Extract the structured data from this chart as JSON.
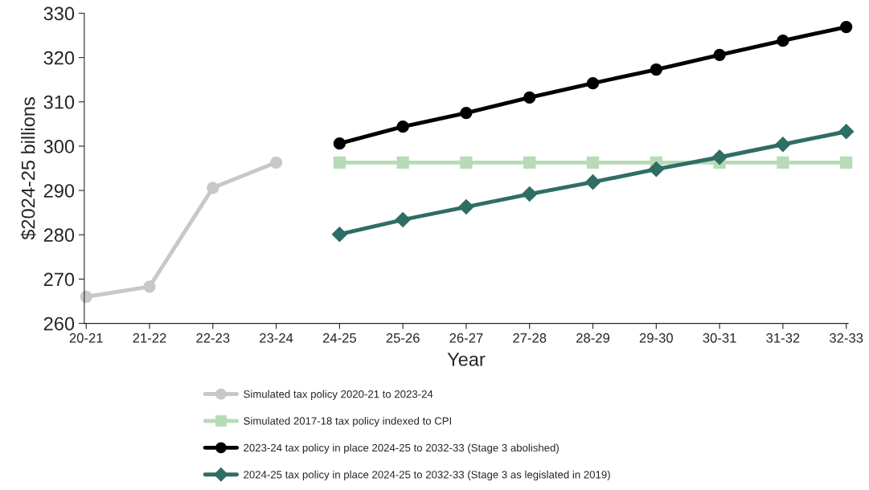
{
  "chart_data": {
    "type": "line",
    "xlabel": "Year",
    "ylabel": "$2024-25 billions",
    "categories": [
      "20-21",
      "21-22",
      "22-23",
      "23-24",
      "24-25",
      "25-26",
      "26-27",
      "27-28",
      "28-29",
      "29-30",
      "30-31",
      "31-32",
      "32-33"
    ],
    "series": [
      {
        "name": "Simulated tax policy 2020-21 to 2023-24",
        "color": "#c8c8c8",
        "marker": "circle",
        "values": [
          266.0,
          268.3,
          290.6,
          296.3,
          null,
          null,
          null,
          null,
          null,
          null,
          null,
          null,
          null
        ]
      },
      {
        "name": "Simulated 2017-18 tax policy indexed to CPI",
        "color": "#b7dbb7",
        "marker": "square",
        "values": [
          null,
          null,
          null,
          null,
          296.3,
          296.3,
          296.3,
          296.3,
          296.3,
          296.3,
          296.3,
          296.3,
          296.3
        ]
      },
      {
        "name": "2023-24 tax policy in place 2024-25 to 2032-33 (Stage 3 abolished)",
        "color": "#000000",
        "marker": "circle",
        "values": [
          null,
          null,
          null,
          null,
          300.6,
          304.4,
          307.5,
          311.0,
          314.2,
          317.3,
          320.6,
          323.8,
          326.9
        ]
      },
      {
        "name": "2024-25 tax policy in place 2024-25 to 2032-33 (Stage 3 as legislated in 2019)",
        "color": "#2e6e64",
        "marker": "diamond",
        "values": [
          null,
          null,
          null,
          null,
          280.1,
          283.4,
          286.3,
          289.2,
          291.9,
          294.8,
          297.5,
          300.4,
          303.3
        ]
      }
    ],
    "ylim": [
      260,
      330
    ],
    "yticks": [
      260,
      270,
      280,
      290,
      300,
      310,
      320,
      330
    ],
    "grid": false,
    "legend": "bottom",
    "line_style": "solid"
  }
}
